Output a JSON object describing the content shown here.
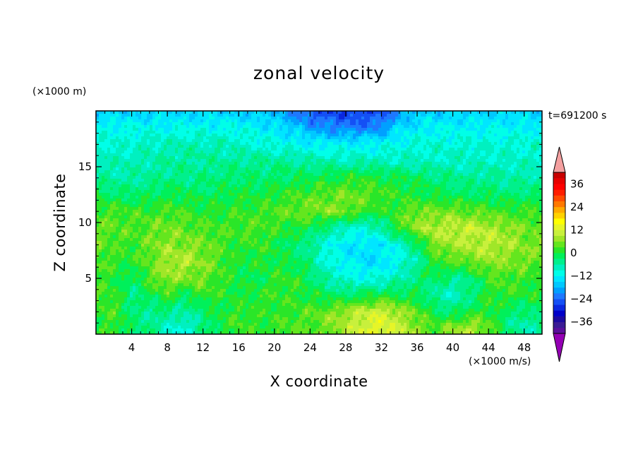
{
  "chart_data": {
    "type": "heatmap",
    "title": "zonal velocity",
    "xlabel": "X coordinate",
    "ylabel": "Z coordinate",
    "x_unit": "(×1000 m/s)",
    "y_unit": "(×1000 m)",
    "time_label": "t=691200 s",
    "xlim": [
      0,
      50
    ],
    "ylim": [
      0,
      20
    ],
    "x_ticks": [
      4,
      8,
      12,
      16,
      20,
      24,
      28,
      32,
      36,
      40,
      44,
      48
    ],
    "y_ticks": [
      5,
      10,
      15
    ],
    "colorbar": {
      "ticks": [
        36,
        24,
        12,
        0,
        -12,
        -24,
        -36
      ],
      "levels": [
        -42,
        -39,
        -36,
        -33,
        -30,
        -27,
        -24,
        -21,
        -18,
        -15,
        -12,
        -9,
        -6,
        -3,
        0,
        3,
        6,
        9,
        12,
        15,
        18,
        21,
        24,
        27,
        30,
        33,
        36,
        39,
        42
      ],
      "colors": [
        "#5a0f9c",
        "#3a1b94",
        "#1c0aa0",
        "#0000c8",
        "#0a28e0",
        "#1450f5",
        "#1e78ff",
        "#00a0ff",
        "#00c8ff",
        "#00e6ff",
        "#00ffe8",
        "#00f0c0",
        "#00f08c",
        "#00f05a",
        "#2ae628",
        "#64e61e",
        "#a0e628",
        "#c8f03c",
        "#e6f528",
        "#ffff00",
        "#ffd200",
        "#ffaa00",
        "#ff7800",
        "#ff4b00",
        "#ff1e00",
        "#ff0000",
        "#e60000",
        "#c80000"
      ],
      "under_color": "#9400b4",
      "over_color": "#f4a0a0"
    },
    "field_grid": {
      "z_levels": [
        0.5,
        2,
        3.5,
        5,
        6.5,
        8,
        9.5,
        11,
        12.5,
        14,
        15.5,
        17,
        18.5,
        19.8
      ],
      "x_values": [
        0,
        2,
        4,
        6,
        8,
        10,
        12,
        14,
        16,
        18,
        20,
        22,
        24,
        26,
        28,
        30,
        32,
        34,
        36,
        38,
        40,
        42,
        44,
        46,
        48,
        50
      ],
      "values": [
        [
          0,
          2,
          -2,
          -4,
          -8,
          -10,
          -4,
          0,
          3,
          1,
          2,
          3,
          3,
          5,
          8,
          12,
          14,
          10,
          6,
          3,
          7,
          9,
          4,
          -3,
          -7,
          -4
        ],
        [
          2,
          3,
          -3,
          -5,
          -4,
          -6,
          -3,
          0,
          2,
          1,
          2,
          2,
          3,
          5,
          8,
          10,
          11,
          8,
          4,
          -1,
          -3,
          0,
          2,
          -2,
          -4,
          -2
        ],
        [
          3,
          2,
          -4,
          -1,
          2,
          -2,
          2,
          1,
          0,
          1,
          2,
          1,
          0,
          -2,
          -3,
          -1,
          0,
          -1,
          -2,
          -6,
          -8,
          -4,
          1,
          2,
          1,
          0
        ],
        [
          2,
          1,
          -3,
          3,
          7,
          6,
          5,
          2,
          0,
          -2,
          1,
          2,
          -2,
          -6,
          -9,
          -11,
          -9,
          -7,
          -3,
          -1,
          -5,
          -4,
          2,
          3,
          2,
          1
        ],
        [
          4,
          2,
          1,
          4,
          8,
          9,
          6,
          3,
          0,
          1,
          0,
          -1,
          -4,
          -10,
          -12,
          -14,
          -14,
          -11,
          -6,
          1,
          3,
          5,
          7,
          6,
          5,
          4
        ],
        [
          5,
          3,
          2,
          5,
          7,
          6,
          5,
          3,
          1,
          2,
          0,
          -3,
          -5,
          -10,
          -13,
          -14,
          -13,
          -9,
          -3,
          6,
          8,
          9,
          10,
          8,
          6,
          5
        ],
        [
          4,
          4,
          3,
          4,
          5,
          4,
          3,
          2,
          3,
          3,
          2,
          1,
          -1,
          -4,
          -8,
          -10,
          -6,
          2,
          7,
          9,
          10,
          10,
          9,
          7,
          5,
          4
        ],
        [
          3,
          3,
          2,
          2,
          3,
          2,
          1,
          1,
          2,
          2,
          3,
          4,
          5,
          6,
          5,
          3,
          0,
          3,
          5,
          5,
          5,
          4,
          3,
          2,
          2,
          2
        ],
        [
          -1,
          -2,
          -3,
          -2,
          -1,
          -1,
          -2,
          -1,
          0,
          0,
          1,
          2,
          3,
          4,
          5,
          4,
          3,
          1,
          0,
          -1,
          -2,
          -2,
          -2,
          -3,
          -3,
          -2
        ],
        [
          -5,
          -6,
          -6,
          -5,
          -4,
          -4,
          -4,
          -3,
          -3,
          -3,
          -2,
          -2,
          -1,
          0,
          1,
          1,
          0,
          -1,
          -2,
          -3,
          -4,
          -5,
          -5,
          -6,
          -6,
          -6
        ],
        [
          -7,
          -7,
          -7,
          -6,
          -6,
          -5,
          -5,
          -5,
          -5,
          -5,
          -5,
          -5,
          -6,
          -6,
          -7,
          -7,
          -8,
          -8,
          -8,
          -8,
          -8,
          -8,
          -8,
          -8,
          -8,
          -8
        ],
        [
          -9,
          -9,
          -9,
          -8,
          -7,
          -7,
          -7,
          -7,
          -8,
          -9,
          -10,
          -11,
          -12,
          -12,
          -12,
          -12,
          -11,
          -10,
          -9,
          -9,
          -9,
          -9,
          -9,
          -9,
          -9,
          -9
        ],
        [
          -11,
          -11,
          -11,
          -11,
          -11,
          -11,
          -11,
          -11,
          -11,
          -12,
          -13,
          -16,
          -19,
          -21,
          -22,
          -22,
          -21,
          -15,
          -13,
          -12,
          -12,
          -12,
          -12,
          -12,
          -12,
          -12
        ],
        [
          -16,
          -15,
          -15,
          -15,
          -15,
          -15,
          -15,
          -15,
          -15,
          -16,
          -17,
          -21,
          -25,
          -26,
          -27,
          -27,
          -25,
          -19,
          -16,
          -15,
          -15,
          -15,
          -15,
          -15,
          -15,
          -15
        ]
      ]
    }
  }
}
